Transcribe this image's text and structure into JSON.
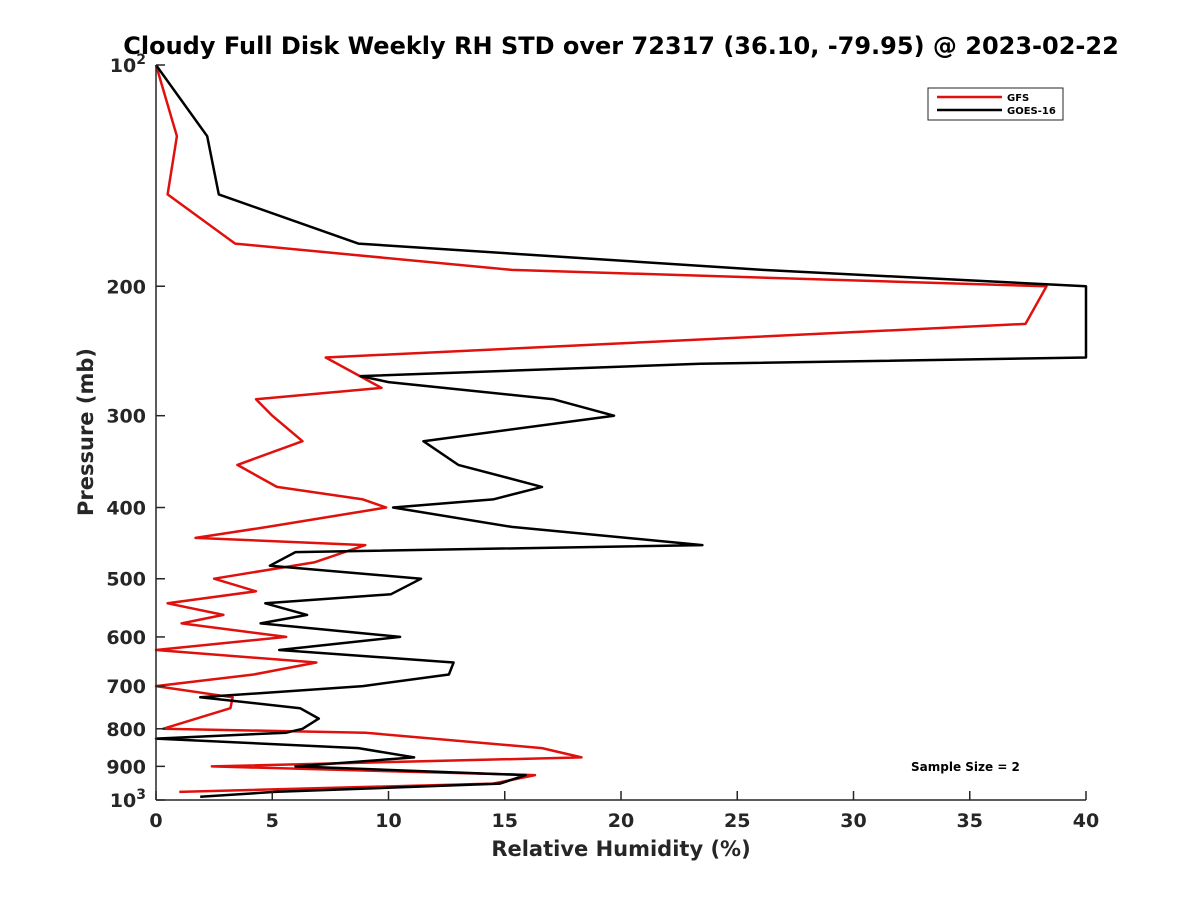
{
  "chart_data": {
    "type": "line",
    "title": "Cloudy Full Disk Weekly RH STD over 72317 (36.10, -79.95) @ 2023-02-22",
    "xlabel": "Relative Humidity (%)",
    "ylabel": "Pressure (mb)",
    "xlim": [
      0,
      40
    ],
    "ylim": [
      100,
      1000
    ],
    "y_scale": "log",
    "y_reversed": true,
    "grid": false,
    "legend_position": "top-right",
    "x_ticks": [
      "0",
      "5",
      "10",
      "15",
      "20",
      "25",
      "30",
      "35",
      "40"
    ],
    "y_ticks": [
      {
        "value": 100,
        "base": "10",
        "exp": "2"
      },
      {
        "value": 200,
        "label": "200"
      },
      {
        "value": 300,
        "label": "300"
      },
      {
        "value": 400,
        "label": "400"
      },
      {
        "value": 500,
        "label": "500"
      },
      {
        "value": 600,
        "label": "600"
      },
      {
        "value": 700,
        "label": "700"
      },
      {
        "value": 800,
        "label": "800"
      },
      {
        "value": 900,
        "label": "900"
      },
      {
        "value": 1000,
        "base": "10",
        "exp": "3"
      }
    ],
    "annotation": "Sample Size = 2",
    "series": [
      {
        "name": "GFS",
        "color": "#e0110d",
        "points": [
          [
            0.0,
            100
          ],
          [
            0.9,
            125
          ],
          [
            0.5,
            150
          ],
          [
            3.4,
            175
          ],
          [
            15.3,
            190
          ],
          [
            38.3,
            200
          ],
          [
            37.4,
            225
          ],
          [
            7.3,
            250
          ],
          [
            9.7,
            275
          ],
          [
            4.3,
            285
          ],
          [
            5.0,
            300
          ],
          [
            6.3,
            325
          ],
          [
            3.5,
            350
          ],
          [
            5.2,
            375
          ],
          [
            8.9,
            390
          ],
          [
            9.9,
            400
          ],
          [
            4.8,
            425
          ],
          [
            1.7,
            440
          ],
          [
            9.0,
            450
          ],
          [
            6.8,
            475
          ],
          [
            2.5,
            500
          ],
          [
            4.3,
            520
          ],
          [
            0.5,
            540
          ],
          [
            2.9,
            560
          ],
          [
            1.1,
            575
          ],
          [
            5.6,
            600
          ],
          [
            0.0,
            625
          ],
          [
            6.9,
            650
          ],
          [
            4.2,
            675
          ],
          [
            0.0,
            700
          ],
          [
            3.3,
            725
          ],
          [
            3.2,
            750
          ],
          [
            0.3,
            800
          ],
          [
            9.0,
            810
          ],
          [
            16.6,
            850
          ],
          [
            18.3,
            875
          ],
          [
            2.4,
            900
          ],
          [
            16.3,
            925
          ],
          [
            14.5,
            950
          ],
          [
            1.0,
            975
          ]
        ]
      },
      {
        "name": "GOES-16",
        "color": "#000000",
        "points": [
          [
            0.0,
            100
          ],
          [
            2.2,
            125
          ],
          [
            2.7,
            150
          ],
          [
            8.7,
            175
          ],
          [
            26.1,
            190
          ],
          [
            40.0,
            200
          ],
          [
            40.0,
            250
          ],
          [
            23.4,
            255
          ],
          [
            8.8,
            265
          ],
          [
            10.0,
            270
          ],
          [
            17.1,
            285
          ],
          [
            19.7,
            300
          ],
          [
            11.5,
            325
          ],
          [
            13.0,
            350
          ],
          [
            16.6,
            375
          ],
          [
            14.5,
            390
          ],
          [
            10.2,
            400
          ],
          [
            15.3,
            425
          ],
          [
            23.5,
            450
          ],
          [
            6.0,
            460
          ],
          [
            4.9,
            480
          ],
          [
            11.4,
            500
          ],
          [
            10.1,
            525
          ],
          [
            4.7,
            540
          ],
          [
            6.5,
            560
          ],
          [
            4.5,
            575
          ],
          [
            10.5,
            600
          ],
          [
            5.3,
            625
          ],
          [
            12.8,
            650
          ],
          [
            12.6,
            675
          ],
          [
            8.9,
            700
          ],
          [
            1.9,
            725
          ],
          [
            6.2,
            750
          ],
          [
            7.0,
            775
          ],
          [
            6.3,
            800
          ],
          [
            5.6,
            810
          ],
          [
            0.0,
            825
          ],
          [
            8.7,
            850
          ],
          [
            11.1,
            875
          ],
          [
            6.0,
            900
          ],
          [
            15.9,
            925
          ],
          [
            14.8,
            950
          ],
          [
            5.1,
            975
          ],
          [
            1.9,
            990
          ]
        ]
      }
    ]
  }
}
